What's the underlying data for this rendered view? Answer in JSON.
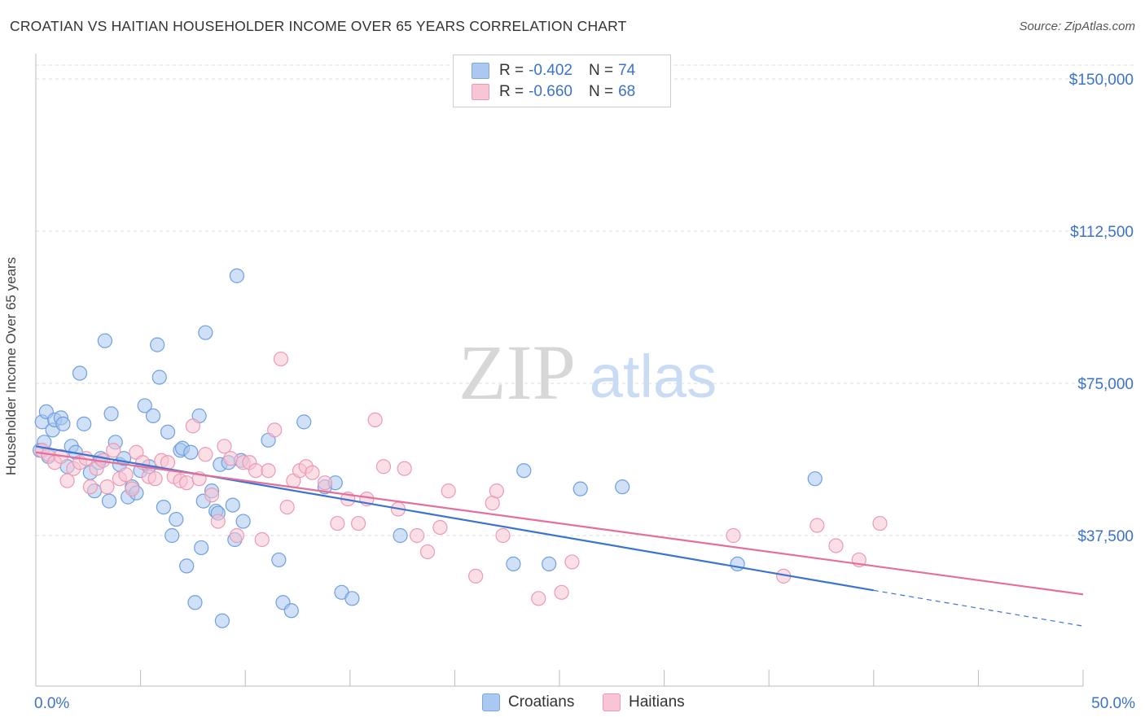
{
  "title": "CROATIAN VS HAITIAN HOUSEHOLDER INCOME OVER 65 YEARS CORRELATION CHART",
  "source": "Source: ZipAtlas.com",
  "watermark": {
    "zip": "ZIP",
    "atlas": "atlas"
  },
  "legend_top": [
    {
      "r_label": "R =",
      "r_value": "-0.402",
      "n_label": "N =",
      "n_value": "74",
      "color": "#aac8f0",
      "border": "#7ea8e0"
    },
    {
      "r_label": "R =",
      "r_value": "-0.660",
      "n_label": "N =",
      "n_value": "68",
      "color": "#f8c5d4",
      "border": "#ec9ab4"
    }
  ],
  "legend_bottom": [
    {
      "label": "Croatians",
      "color": "#aac8f0",
      "border": "#7ea8e0"
    },
    {
      "label": "Haitians",
      "color": "#f8c5d4",
      "border": "#ec9ab4"
    }
  ],
  "chart_data": {
    "type": "scatter",
    "ylabel": "Householder Income Over 65 years",
    "xlim": [
      0,
      50
    ],
    "ylim": [
      0,
      155000
    ],
    "x_tick_labels": [
      "0.0%",
      "50.0%"
    ],
    "y_ticks": [
      37500,
      75000,
      112500,
      150000
    ],
    "y_tick_labels": [
      "$37,500",
      "$75,000",
      "$112,500",
      "$150,000"
    ],
    "grid": true,
    "series": [
      {
        "name": "Croatians",
        "color": "#6f9fe0",
        "fill": "#aac8f0",
        "trend_color": "#3a74cf",
        "trend": {
          "x0": 0,
          "y0": 59500,
          "x1": 40,
          "y1": 24000,
          "dash_to_x": 50,
          "dash_to_y": 15200
        },
        "points": [
          [
            0.3,
            65500
          ],
          [
            0.5,
            68000
          ],
          [
            0.8,
            63500
          ],
          [
            0.9,
            66000
          ],
          [
            1.2,
            66500
          ],
          [
            1.3,
            65000
          ],
          [
            1.5,
            54500
          ],
          [
            1.7,
            59500
          ],
          [
            1.9,
            58000
          ],
          [
            2.1,
            77500
          ],
          [
            2.3,
            65000
          ],
          [
            2.6,
            53000
          ],
          [
            2.8,
            48500
          ],
          [
            3.0,
            55500
          ],
          [
            3.1,
            56500
          ],
          [
            3.3,
            85500
          ],
          [
            3.5,
            46000
          ],
          [
            3.6,
            67500
          ],
          [
            3.8,
            60500
          ],
          [
            4.0,
            55000
          ],
          [
            4.2,
            56500
          ],
          [
            4.4,
            47000
          ],
          [
            4.6,
            49500
          ],
          [
            4.8,
            48000
          ],
          [
            5.0,
            53500
          ],
          [
            5.2,
            69500
          ],
          [
            5.4,
            54500
          ],
          [
            5.6,
            67000
          ],
          [
            5.8,
            84500
          ],
          [
            5.9,
            76500
          ],
          [
            6.1,
            44500
          ],
          [
            6.3,
            63000
          ],
          [
            6.5,
            37500
          ],
          [
            6.7,
            41500
          ],
          [
            6.9,
            58500
          ],
          [
            7.0,
            59000
          ],
          [
            7.2,
            30000
          ],
          [
            7.4,
            58000
          ],
          [
            7.6,
            21000
          ],
          [
            7.8,
            67000
          ],
          [
            7.9,
            34500
          ],
          [
            8.0,
            46000
          ],
          [
            8.1,
            87500
          ],
          [
            8.4,
            48500
          ],
          [
            8.6,
            43500
          ],
          [
            8.7,
            43000
          ],
          [
            8.8,
            55000
          ],
          [
            8.9,
            16500
          ],
          [
            9.2,
            55500
          ],
          [
            9.4,
            45000
          ],
          [
            9.5,
            36500
          ],
          [
            9.6,
            101500
          ],
          [
            9.8,
            56000
          ],
          [
            9.9,
            41000
          ],
          [
            11.1,
            61000
          ],
          [
            11.6,
            31500
          ],
          [
            11.8,
            21000
          ],
          [
            12.2,
            19000
          ],
          [
            12.8,
            65500
          ],
          [
            13.8,
            49500
          ],
          [
            14.3,
            50500
          ],
          [
            14.6,
            23500
          ],
          [
            15.1,
            22000
          ],
          [
            17.4,
            37500
          ],
          [
            22.8,
            30500
          ],
          [
            23.3,
            53500
          ],
          [
            24.5,
            30500
          ],
          [
            26.0,
            49000
          ],
          [
            28.0,
            49500
          ],
          [
            33.5,
            30500
          ],
          [
            37.2,
            51500
          ],
          [
            0.2,
            58500
          ],
          [
            0.4,
            60500
          ],
          [
            0.6,
            57000
          ]
        ]
      },
      {
        "name": "Haitians",
        "color": "#ec9ab4",
        "fill": "#f8c5d4",
        "trend_color": "#e46f9a",
        "trend": {
          "x0": 0,
          "y0": 58000,
          "x1": 50,
          "y1": 23000
        },
        "points": [
          [
            0.3,
            58500
          ],
          [
            0.6,
            57500
          ],
          [
            0.9,
            55500
          ],
          [
            1.2,
            57000
          ],
          [
            1.5,
            51000
          ],
          [
            1.8,
            54000
          ],
          [
            2.1,
            55500
          ],
          [
            2.4,
            56500
          ],
          [
            2.6,
            49500
          ],
          [
            2.9,
            54000
          ],
          [
            3.2,
            56000
          ],
          [
            3.4,
            49500
          ],
          [
            3.7,
            58500
          ],
          [
            4.0,
            51500
          ],
          [
            4.3,
            52500
          ],
          [
            4.6,
            49000
          ],
          [
            4.8,
            58000
          ],
          [
            5.1,
            55500
          ],
          [
            5.4,
            52000
          ],
          [
            5.7,
            51500
          ],
          [
            6.0,
            56000
          ],
          [
            6.3,
            55500
          ],
          [
            6.6,
            52000
          ],
          [
            6.9,
            51000
          ],
          [
            7.2,
            50500
          ],
          [
            7.5,
            64500
          ],
          [
            7.8,
            51500
          ],
          [
            8.1,
            57500
          ],
          [
            8.4,
            47500
          ],
          [
            8.7,
            41000
          ],
          [
            9.0,
            59500
          ],
          [
            9.3,
            56500
          ],
          [
            9.6,
            37500
          ],
          [
            9.9,
            55500
          ],
          [
            10.2,
            55500
          ],
          [
            10.5,
            53500
          ],
          [
            10.8,
            36500
          ],
          [
            11.1,
            53500
          ],
          [
            11.4,
            63500
          ],
          [
            11.7,
            81000
          ],
          [
            12.0,
            44500
          ],
          [
            12.3,
            51000
          ],
          [
            12.6,
            53500
          ],
          [
            12.9,
            54500
          ],
          [
            13.2,
            53000
          ],
          [
            13.8,
            50500
          ],
          [
            14.4,
            40500
          ],
          [
            14.9,
            46500
          ],
          [
            15.4,
            40500
          ],
          [
            15.8,
            46500
          ],
          [
            16.2,
            66000
          ],
          [
            16.6,
            54500
          ],
          [
            17.3,
            44000
          ],
          [
            17.6,
            54000
          ],
          [
            18.2,
            37500
          ],
          [
            18.7,
            33500
          ],
          [
            19.3,
            39500
          ],
          [
            19.7,
            48500
          ],
          [
            21.0,
            27500
          ],
          [
            21.8,
            45500
          ],
          [
            22.0,
            48500
          ],
          [
            22.3,
            37500
          ],
          [
            24.0,
            22000
          ],
          [
            25.1,
            23500
          ],
          [
            25.6,
            31000
          ],
          [
            33.3,
            37500
          ],
          [
            35.7,
            27500
          ],
          [
            37.3,
            40000
          ]
        ]
      }
    ],
    "extra_haitian_points": [
      [
        38.2,
        35000
      ],
      [
        39.3,
        31500
      ],
      [
        40.3,
        40500
      ]
    ]
  }
}
